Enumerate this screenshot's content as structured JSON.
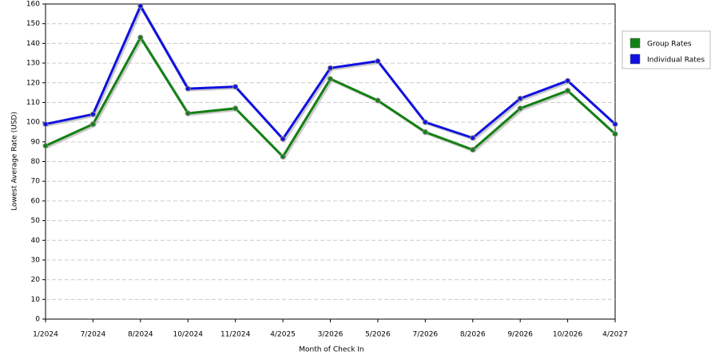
{
  "chart_data": {
    "type": "line",
    "x_label": "Month of Check In",
    "y_label": "Lowest Average Rate (USD)",
    "categories": [
      "1/2024",
      "7/2024",
      "8/2024",
      "10/2024",
      "11/2024",
      "4/2025",
      "3/2026",
      "5/2026",
      "7/2026",
      "8/2026",
      "9/2026",
      "10/2026",
      "4/2027"
    ],
    "series": [
      {
        "name": "Group Rates",
        "color": "#138013",
        "values": [
          88,
          99,
          143,
          104.5,
          107,
          82.5,
          122,
          111,
          95,
          86,
          107,
          116,
          94
        ]
      },
      {
        "name": "Individual Rates",
        "color": "#1010e0",
        "values": [
          99,
          104,
          159,
          117,
          118,
          91.5,
          127.5,
          131,
          100,
          92,
          112,
          121,
          99
        ]
      }
    ],
    "ylim": [
      0,
      160
    ],
    "yticks": [
      0,
      10,
      20,
      30,
      40,
      50,
      60,
      70,
      80,
      90,
      100,
      110,
      120,
      130,
      140,
      150,
      160
    ],
    "grid": true,
    "legend": "right"
  }
}
